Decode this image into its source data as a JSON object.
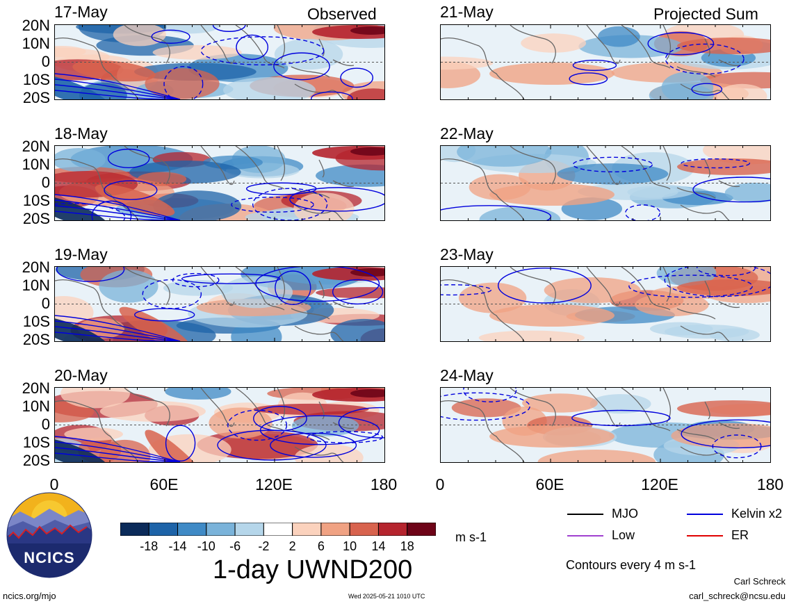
{
  "left_column": {
    "header_label": "Observed",
    "panels": [
      {
        "date": "17-May"
      },
      {
        "date": "18-May"
      },
      {
        "date": "19-May"
      },
      {
        "date": "20-May"
      }
    ]
  },
  "right_column": {
    "header_label": "Projected Sum",
    "panels": [
      {
        "date": "21-May"
      },
      {
        "date": "22-May"
      },
      {
        "date": "23-May"
      },
      {
        "date": "24-May"
      }
    ]
  },
  "lat_labels": [
    "20N",
    "10N",
    "0",
    "10S",
    "20S"
  ],
  "lon_labels": [
    "0",
    "60E",
    "120E",
    "180"
  ],
  "colorbar": {
    "colors": [
      "#0b2b5a",
      "#1d63a8",
      "#3f8ac6",
      "#7ab3da",
      "#b5d6ea",
      "#ffffff",
      "#fbd2bd",
      "#f0a283",
      "#d8634e",
      "#b5242e",
      "#6e0418"
    ],
    "tick_labels": [
      "-18",
      "-14",
      "-10",
      "-6",
      "-2",
      "2",
      "6",
      "10",
      "14",
      "18"
    ],
    "units": "m s-1"
  },
  "title": "1-day UWND200",
  "legend": {
    "items": [
      {
        "label": "MJO",
        "color": "#000000"
      },
      {
        "label": "Kelvin x2",
        "color": "#0000dd"
      },
      {
        "label": "Low",
        "color": "#a040d0"
      },
      {
        "label": "ER",
        "color": "#e00000"
      }
    ],
    "contour_note": "Contours every 4 m s-1"
  },
  "logo": {
    "text": "NCICS"
  },
  "footer": {
    "site": "ncics.org/mjo",
    "timestamp": "Wed 2025-05-21 1010 UTC",
    "author": "Carl Schreck",
    "email": "carl_schreck@ncsu.edu"
  }
}
